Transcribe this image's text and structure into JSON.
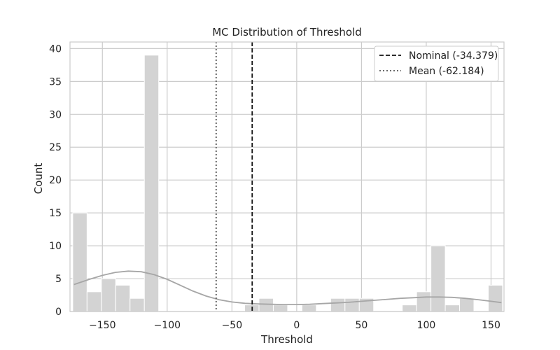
{
  "chart_data": {
    "type": "bar",
    "title": "MC Distribution of Threshold",
    "xlabel": "Threshold",
    "ylabel": "Count",
    "xlim": [
      -175,
      160
    ],
    "ylim": [
      0,
      41
    ],
    "xticks": [
      -150,
      -100,
      -50,
      0,
      50,
      100,
      150
    ],
    "xtick_labels": [
      "−150",
      "−100",
      "−50",
      "0",
      "50",
      "100",
      "150"
    ],
    "yticks": [
      0,
      5,
      10,
      15,
      20,
      25,
      30,
      35,
      40
    ],
    "ytick_labels": [
      "0",
      "5",
      "10",
      "15",
      "20",
      "25",
      "30",
      "35",
      "40"
    ],
    "grid": true,
    "bin_edges_start": -172.9,
    "bin_width": 11.06,
    "counts": [
      15,
      3,
      5,
      4,
      2,
      39,
      0,
      0,
      0,
      0,
      0,
      0,
      1,
      2,
      1,
      0,
      1,
      0,
      2,
      2,
      2,
      0,
      0,
      1,
      3,
      10,
      1,
      2,
      0,
      4
    ],
    "kde": {
      "name": "KDE",
      "x": [
        -172,
        -160,
        -150,
        -140,
        -130,
        -120,
        -110,
        -100,
        -90,
        -80,
        -70,
        -60,
        -50,
        -40,
        -30,
        -20,
        -10,
        0,
        10,
        20,
        30,
        40,
        50,
        60,
        70,
        80,
        90,
        100,
        110,
        120,
        130,
        140,
        150,
        158
      ],
      "y": [
        4.1,
        4.9,
        5.5,
        5.95,
        6.15,
        6.05,
        5.6,
        4.9,
        4.0,
        3.1,
        2.35,
        1.8,
        1.45,
        1.25,
        1.15,
        1.1,
        1.05,
        1.05,
        1.1,
        1.2,
        1.3,
        1.4,
        1.55,
        1.7,
        1.85,
        2.0,
        2.1,
        2.2,
        2.2,
        2.15,
        2.0,
        1.8,
        1.55,
        1.35
      ]
    },
    "reference_lines": [
      {
        "label": "Nominal (-34.379)",
        "x": -34.379,
        "style": "dashed",
        "color": "#111111"
      },
      {
        "label": "Mean (-62.184)",
        "x": -62.184,
        "style": "dotted",
        "color": "#555555"
      }
    ],
    "legend_position": "top-right",
    "colors": {
      "bar": "#d3d3d3",
      "bar_edge": "#ffffff",
      "kde": "#a6a6a6",
      "grid": "#cccccc",
      "frame": "#cccccc"
    }
  }
}
